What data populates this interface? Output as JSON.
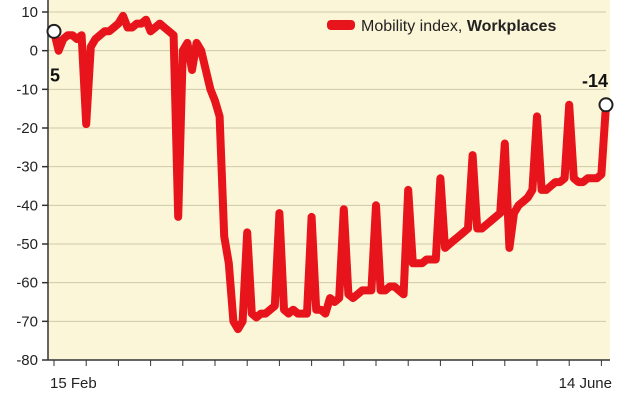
{
  "colors": {
    "plot_background": "#fcf6d8",
    "series_line": "#e8141b",
    "axis": "#333333",
    "grid": "#cfcaa8"
  },
  "chart_data": {
    "type": "line",
    "legend": {
      "label_regular": "Mobility index, ",
      "label_bold": "Workplaces",
      "position": "top-right"
    },
    "x_tick_labels": [
      "15 Feb",
      "14 June"
    ],
    "xrange": [
      "2020-02-15",
      "2020-06-14"
    ],
    "ylim": [
      -80,
      10
    ],
    "yticks": [
      10,
      0,
      -10,
      -20,
      -30,
      -40,
      -50,
      -60,
      -70,
      -80
    ],
    "grid": "horizontal",
    "callouts": [
      {
        "label": "5",
        "x": "2020-02-15",
        "y": 5
      },
      {
        "label": "-14",
        "x": "2020-06-14",
        "y": -14
      }
    ],
    "series": [
      {
        "name": "Mobility index, Workplaces",
        "points": [
          [
            "2020-02-15",
            5
          ],
          [
            "2020-02-16",
            0
          ],
          [
            "2020-02-17",
            3
          ],
          [
            "2020-02-18",
            4
          ],
          [
            "2020-02-19",
            4
          ],
          [
            "2020-02-20",
            3
          ],
          [
            "2020-02-21",
            4
          ],
          [
            "2020-02-22",
            -19
          ],
          [
            "2020-02-23",
            1
          ],
          [
            "2020-02-24",
            3
          ],
          [
            "2020-02-25",
            4
          ],
          [
            "2020-02-26",
            5
          ],
          [
            "2020-02-27",
            5
          ],
          [
            "2020-02-28",
            6
          ],
          [
            "2020-02-29",
            7
          ],
          [
            "2020-03-01",
            9
          ],
          [
            "2020-03-02",
            6
          ],
          [
            "2020-03-03",
            6
          ],
          [
            "2020-03-04",
            7
          ],
          [
            "2020-03-05",
            7
          ],
          [
            "2020-03-06",
            8
          ],
          [
            "2020-03-07",
            5
          ],
          [
            "2020-03-08",
            6
          ],
          [
            "2020-03-09",
            7
          ],
          [
            "2020-03-10",
            6
          ],
          [
            "2020-03-11",
            5
          ],
          [
            "2020-03-12",
            4
          ],
          [
            "2020-03-13",
            -43
          ],
          [
            "2020-03-14",
            0
          ],
          [
            "2020-03-15",
            2
          ],
          [
            "2020-03-16",
            -5
          ],
          [
            "2020-03-17",
            2
          ],
          [
            "2020-03-18",
            0
          ],
          [
            "2020-03-19",
            -5
          ],
          [
            "2020-03-20",
            -10
          ],
          [
            "2020-03-21",
            -13
          ],
          [
            "2020-03-22",
            -17
          ],
          [
            "2020-03-23",
            -48
          ],
          [
            "2020-03-24",
            -55
          ],
          [
            "2020-03-25",
            -70
          ],
          [
            "2020-03-26",
            -72
          ],
          [
            "2020-03-27",
            -70
          ],
          [
            "2020-03-28",
            -47
          ],
          [
            "2020-03-29",
            -68
          ],
          [
            "2020-03-30",
            -69
          ],
          [
            "2020-03-31",
            -68
          ],
          [
            "2020-04-01",
            -68
          ],
          [
            "2020-04-02",
            -67
          ],
          [
            "2020-04-03",
            -66
          ],
          [
            "2020-04-04",
            -42
          ],
          [
            "2020-04-05",
            -67
          ],
          [
            "2020-04-06",
            -68
          ],
          [
            "2020-04-07",
            -67
          ],
          [
            "2020-04-08",
            -68
          ],
          [
            "2020-04-09",
            -68
          ],
          [
            "2020-04-10",
            -68
          ],
          [
            "2020-04-11",
            -43
          ],
          [
            "2020-04-12",
            -67
          ],
          [
            "2020-04-13",
            -67
          ],
          [
            "2020-04-14",
            -68
          ],
          [
            "2020-04-15",
            -64
          ],
          [
            "2020-04-16",
            -65
          ],
          [
            "2020-04-17",
            -64
          ],
          [
            "2020-04-18",
            -41
          ],
          [
            "2020-04-19",
            -63
          ],
          [
            "2020-04-20",
            -64
          ],
          [
            "2020-04-21",
            -63
          ],
          [
            "2020-04-22",
            -62
          ],
          [
            "2020-04-23",
            -62
          ],
          [
            "2020-04-24",
            -62
          ],
          [
            "2020-04-25",
            -40
          ],
          [
            "2020-04-26",
            -62
          ],
          [
            "2020-04-27",
            -62
          ],
          [
            "2020-04-28",
            -61
          ],
          [
            "2020-04-29",
            -61
          ],
          [
            "2020-04-30",
            -62
          ],
          [
            "2020-05-01",
            -63
          ],
          [
            "2020-05-02",
            -36
          ],
          [
            "2020-05-03",
            -55
          ],
          [
            "2020-05-04",
            -55
          ],
          [
            "2020-05-05",
            -55
          ],
          [
            "2020-05-06",
            -54
          ],
          [
            "2020-05-07",
            -54
          ],
          [
            "2020-05-08",
            -54
          ],
          [
            "2020-05-09",
            -33
          ],
          [
            "2020-05-10",
            -51
          ],
          [
            "2020-05-11",
            -50
          ],
          [
            "2020-05-12",
            -49
          ],
          [
            "2020-05-13",
            -48
          ],
          [
            "2020-05-14",
            -47
          ],
          [
            "2020-05-15",
            -46
          ],
          [
            "2020-05-16",
            -27
          ],
          [
            "2020-05-17",
            -46
          ],
          [
            "2020-05-18",
            -46
          ],
          [
            "2020-05-19",
            -45
          ],
          [
            "2020-05-20",
            -44
          ],
          [
            "2020-05-21",
            -43
          ],
          [
            "2020-05-22",
            -42
          ],
          [
            "2020-05-23",
            -24
          ],
          [
            "2020-05-24",
            -51
          ],
          [
            "2020-05-25",
            -42
          ],
          [
            "2020-05-26",
            -40
          ],
          [
            "2020-05-27",
            -39
          ],
          [
            "2020-05-28",
            -38
          ],
          [
            "2020-05-29",
            -36
          ],
          [
            "2020-05-30",
            -17
          ],
          [
            "2020-05-31",
            -36
          ],
          [
            "2020-06-01",
            -36
          ],
          [
            "2020-06-02",
            -35
          ],
          [
            "2020-06-03",
            -34
          ],
          [
            "2020-06-04",
            -34
          ],
          [
            "2020-06-05",
            -33
          ],
          [
            "2020-06-06",
            -14
          ],
          [
            "2020-06-07",
            -33
          ],
          [
            "2020-06-08",
            -34
          ],
          [
            "2020-06-09",
            -34
          ],
          [
            "2020-06-10",
            -33
          ],
          [
            "2020-06-11",
            -33
          ],
          [
            "2020-06-12",
            -33
          ],
          [
            "2020-06-13",
            -32
          ],
          [
            "2020-06-14",
            -14
          ]
        ]
      }
    ]
  }
}
